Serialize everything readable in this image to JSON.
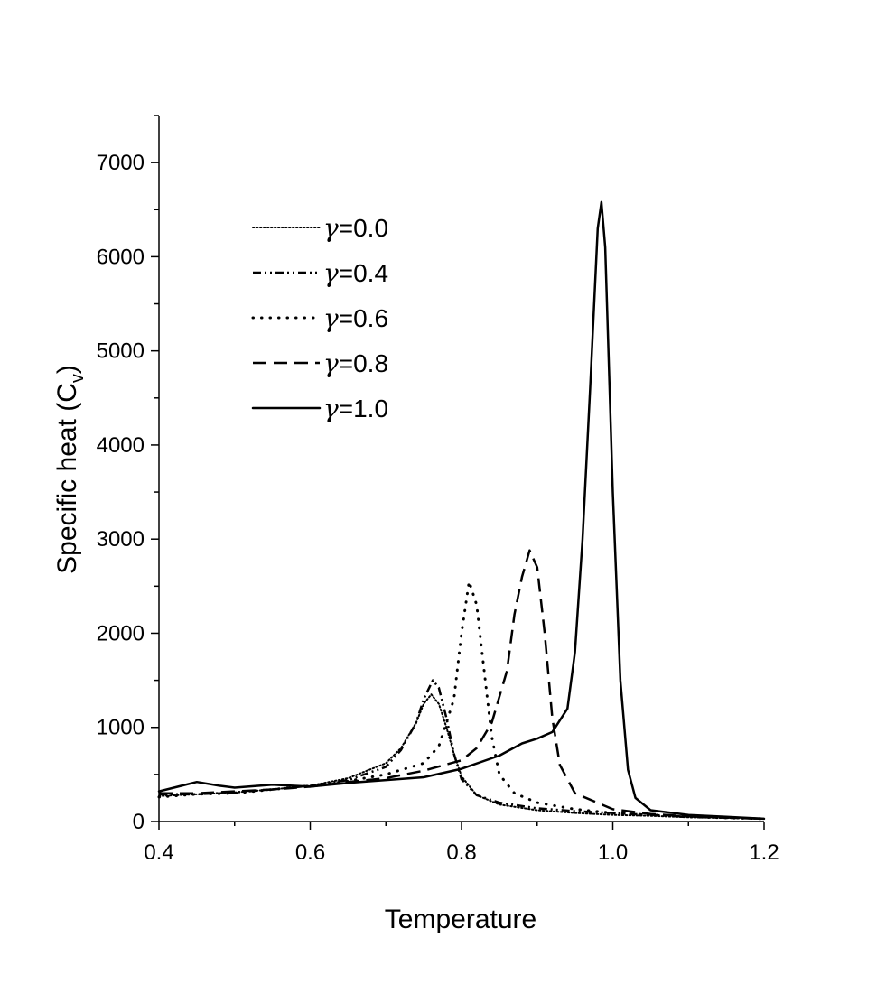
{
  "chart_data": {
    "type": "line",
    "title": "",
    "xlabel": "Temperature",
    "ylabel": {
      "main": "Specific heat (C",
      "sub": "v",
      "close": ")"
    },
    "xlim": [
      0.4,
      1.2
    ],
    "ylim": [
      0,
      7500
    ],
    "x_ticks": [
      "0.4",
      "0.6",
      "0.8",
      "1.0",
      "1.2"
    ],
    "x_tick_values": [
      0.4,
      0.6,
      0.8,
      1.0,
      1.2
    ],
    "y_ticks": [
      "0",
      "1000",
      "2000",
      "3000",
      "4000",
      "5000",
      "6000",
      "7000"
    ],
    "y_tick_values": [
      0,
      1000,
      2000,
      3000,
      4000,
      5000,
      6000,
      7000
    ],
    "grid": false,
    "legend_placement": "top-left",
    "series": [
      {
        "name": "γ=0.0",
        "symbol": "γ",
        "value_text": "=0.0",
        "style": "dotted",
        "points": [
          [
            0.4,
            270
          ],
          [
            0.45,
            290
          ],
          [
            0.5,
            310
          ],
          [
            0.55,
            340
          ],
          [
            0.6,
            380
          ],
          [
            0.65,
            460
          ],
          [
            0.7,
            620
          ],
          [
            0.72,
            780
          ],
          [
            0.74,
            1050
          ],
          [
            0.75,
            1250
          ],
          [
            0.76,
            1350
          ],
          [
            0.77,
            1250
          ],
          [
            0.78,
            1000
          ],
          [
            0.79,
            720
          ],
          [
            0.8,
            480
          ],
          [
            0.82,
            280
          ],
          [
            0.85,
            180
          ],
          [
            0.9,
            120
          ],
          [
            0.95,
            90
          ],
          [
            1.0,
            70
          ],
          [
            1.05,
            60
          ],
          [
            1.1,
            45
          ],
          [
            1.2,
            30
          ]
        ]
      },
      {
        "name": "γ=0.4",
        "symbol": "γ",
        "value_text": "=0.4",
        "style": "dash-dot-dot",
        "points": [
          [
            0.4,
            290
          ],
          [
            0.45,
            290
          ],
          [
            0.5,
            310
          ],
          [
            0.55,
            340
          ],
          [
            0.6,
            380
          ],
          [
            0.65,
            440
          ],
          [
            0.7,
            580
          ],
          [
            0.72,
            760
          ],
          [
            0.74,
            1050
          ],
          [
            0.75,
            1300
          ],
          [
            0.762,
            1500
          ],
          [
            0.77,
            1420
          ],
          [
            0.78,
            1100
          ],
          [
            0.79,
            720
          ],
          [
            0.8,
            450
          ],
          [
            0.82,
            280
          ],
          [
            0.85,
            200
          ],
          [
            0.9,
            140
          ],
          [
            0.95,
            110
          ],
          [
            1.0,
            90
          ],
          [
            1.05,
            70
          ],
          [
            1.1,
            50
          ],
          [
            1.2,
            30
          ]
        ]
      },
      {
        "name": "γ=0.6",
        "symbol": "γ",
        "value_text": "=0.6",
        "style": "spaced-dots",
        "points": [
          [
            0.4,
            260
          ],
          [
            0.45,
            290
          ],
          [
            0.5,
            300
          ],
          [
            0.55,
            340
          ],
          [
            0.6,
            380
          ],
          [
            0.65,
            430
          ],
          [
            0.7,
            500
          ],
          [
            0.75,
            620
          ],
          [
            0.77,
            800
          ],
          [
            0.79,
            1300
          ],
          [
            0.8,
            2000
          ],
          [
            0.81,
            2550
          ],
          [
            0.82,
            2300
          ],
          [
            0.83,
            1600
          ],
          [
            0.84,
            900
          ],
          [
            0.85,
            500
          ],
          [
            0.87,
            300
          ],
          [
            0.9,
            200
          ],
          [
            0.95,
            130
          ],
          [
            1.0,
            90
          ],
          [
            1.05,
            70
          ],
          [
            1.1,
            50
          ],
          [
            1.2,
            30
          ]
        ]
      },
      {
        "name": "γ=0.8",
        "symbol": "γ",
        "value_text": "=0.8",
        "style": "dashed",
        "points": [
          [
            0.4,
            300
          ],
          [
            0.45,
            300
          ],
          [
            0.5,
            320
          ],
          [
            0.55,
            340
          ],
          [
            0.6,
            370
          ],
          [
            0.65,
            420
          ],
          [
            0.7,
            460
          ],
          [
            0.75,
            540
          ],
          [
            0.8,
            650
          ],
          [
            0.82,
            780
          ],
          [
            0.84,
            1050
          ],
          [
            0.86,
            1600
          ],
          [
            0.87,
            2200
          ],
          [
            0.88,
            2600
          ],
          [
            0.89,
            2880
          ],
          [
            0.9,
            2700
          ],
          [
            0.91,
            2000
          ],
          [
            0.92,
            1100
          ],
          [
            0.93,
            600
          ],
          [
            0.95,
            300
          ],
          [
            1.0,
            130
          ],
          [
            1.05,
            80
          ],
          [
            1.1,
            55
          ],
          [
            1.2,
            30
          ]
        ]
      },
      {
        "name": "γ=1.0",
        "symbol": "γ",
        "value_text": "=1.0",
        "style": "solid",
        "points": [
          [
            0.4,
            320
          ],
          [
            0.43,
            380
          ],
          [
            0.45,
            420
          ],
          [
            0.48,
            380
          ],
          [
            0.5,
            360
          ],
          [
            0.55,
            390
          ],
          [
            0.6,
            370
          ],
          [
            0.65,
            410
          ],
          [
            0.7,
            440
          ],
          [
            0.75,
            470
          ],
          [
            0.8,
            560
          ],
          [
            0.85,
            700
          ],
          [
            0.88,
            830
          ],
          [
            0.9,
            880
          ],
          [
            0.92,
            950
          ],
          [
            0.94,
            1200
          ],
          [
            0.95,
            1800
          ],
          [
            0.96,
            3000
          ],
          [
            0.97,
            4600
          ],
          [
            0.98,
            6300
          ],
          [
            0.985,
            6580
          ],
          [
            0.99,
            6100
          ],
          [
            1.0,
            3500
          ],
          [
            1.01,
            1500
          ],
          [
            1.02,
            550
          ],
          [
            1.03,
            250
          ],
          [
            1.05,
            120
          ],
          [
            1.1,
            70
          ],
          [
            1.15,
            50
          ],
          [
            1.2,
            30
          ]
        ]
      }
    ]
  }
}
